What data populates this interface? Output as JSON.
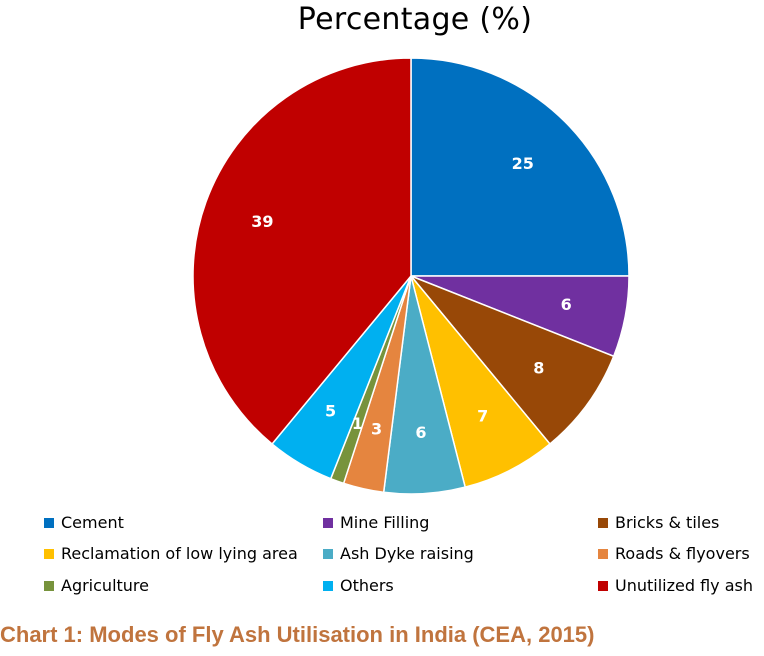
{
  "chart_data": {
    "type": "pie",
    "title": "Percentage (%)",
    "categories": [
      "Cement",
      "Mine Filling",
      "Bricks & tiles",
      "Reclamation of low lying area",
      "Ash Dyke raising",
      "Roads & flyovers",
      "Agriculture",
      "Others",
      "Unutilized fly ash"
    ],
    "values": [
      25,
      6,
      8,
      7,
      6,
      3,
      1,
      5,
      39
    ],
    "colors": [
      "#0070c0",
      "#7030a0",
      "#984807",
      "#ffc000",
      "#4bacc6",
      "#e5853f",
      "#77933c",
      "#00b0f0",
      "#c00000"
    ],
    "legend_position": "bottom"
  },
  "caption": "Chart 1: Modes of Fly Ash Utilisation in India (CEA, 2015)"
}
